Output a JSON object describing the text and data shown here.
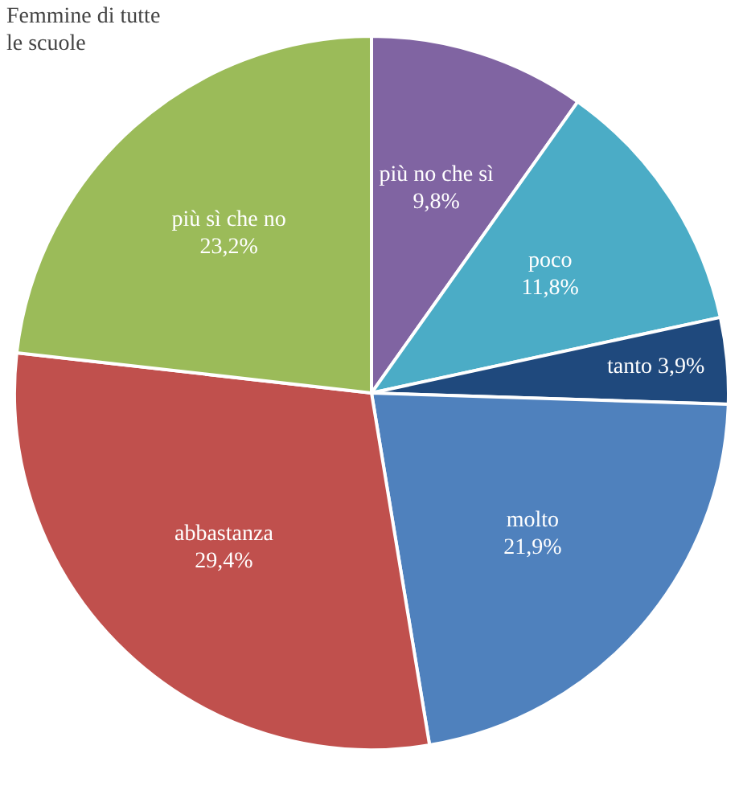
{
  "chart_data": {
    "type": "pie",
    "title": "Femmine di tutte le scuole",
    "categories": [
      "più no che sì",
      "poco",
      "tanto",
      "molto",
      "abbastanza",
      "più sì che no"
    ],
    "values": [
      9.8,
      11.8,
      3.9,
      21.9,
      29.4,
      23.2
    ],
    "colors": [
      "#8064a2",
      "#4bacc6",
      "#1f497d",
      "#4f81bd",
      "#c0504d",
      "#9bbb59"
    ],
    "value_labels": [
      "9,8%",
      "11,8%",
      "3,9%",
      "21,9%",
      "29,4%",
      "23,2%"
    ]
  }
}
